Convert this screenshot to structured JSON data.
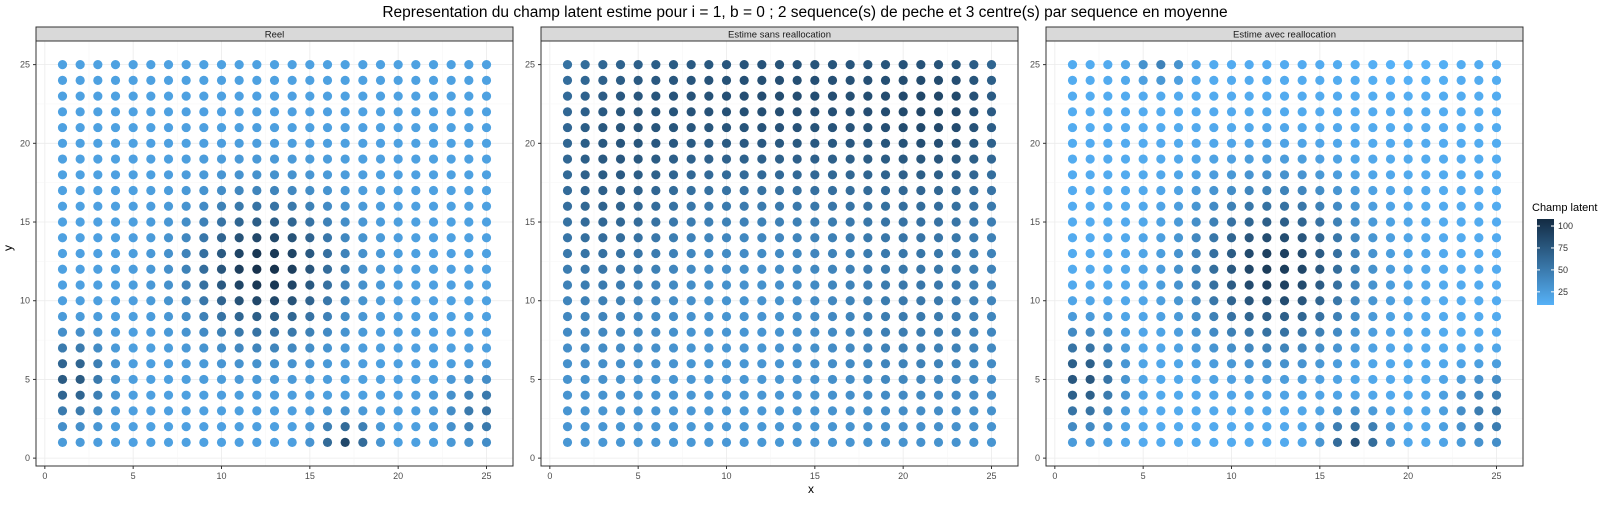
{
  "chart_data": {
    "type": "scatter",
    "title": "Representation du champ latent estime pour i = 1, b = 0 ; 2 sequence(s) de peche et 3 centre(s) par sequence en moyenne",
    "xlabel": "x",
    "ylabel": "y",
    "xlim": [
      -0.5,
      26.5
    ],
    "ylim": [
      -0.5,
      26.5
    ],
    "x_ticks": [
      0,
      5,
      10,
      15,
      20,
      25
    ],
    "y_ticks": [
      0,
      5,
      10,
      15,
      20,
      25
    ],
    "grid": true,
    "grid_x_range": [
      1,
      25
    ],
    "grid_y_range": [
      1,
      25
    ],
    "legend": {
      "title": "Champ latent",
      "position": "right",
      "ticks": [
        25,
        50,
        75,
        100
      ],
      "range": [
        10,
        108
      ],
      "color_low": "#56B1F7",
      "color_high": "#132B43"
    },
    "panels": [
      {
        "label": "Reel",
        "field_model": {
          "base": 22,
          "bumps": [
            {
              "x": 12.5,
              "y": 12,
              "sx": 2.8,
              "sy": 3.0,
              "amp": 82
            },
            {
              "x": 1.5,
              "y": 5,
              "sx": 1.3,
              "sy": 1.8,
              "amp": 55
            },
            {
              "x": 17,
              "y": 1,
              "sx": 1.0,
              "sy": 1.0,
              "amp": 65
            },
            {
              "x": 25,
              "y": 3,
              "sx": 1.5,
              "sy": 1.5,
              "amp": 35
            }
          ]
        }
      },
      {
        "label": "Estime sans reallocation",
        "field_model": {
          "base": 28,
          "bumps": [
            {
              "x": 13,
              "y": 23,
              "sx": 9.0,
              "sy": 5.0,
              "amp": 55
            },
            {
              "x": 23,
              "y": 22,
              "sx": 3.0,
              "sy": 4.0,
              "amp": 28
            },
            {
              "x": 3,
              "y": 16,
              "sx": 3.0,
              "sy": 6.0,
              "amp": 28
            },
            {
              "x": 21,
              "y": 10,
              "sx": 4.0,
              "sy": 5.0,
              "amp": 22
            }
          ]
        }
      },
      {
        "label": "Estime avec reallocation",
        "field_model": {
          "base": 14,
          "bumps": [
            {
              "x": 12.5,
              "y": 12,
              "sx": 3.2,
              "sy": 3.5,
              "amp": 82
            },
            {
              "x": 1.5,
              "y": 5,
              "sx": 1.5,
              "sy": 2.2,
              "amp": 65
            },
            {
              "x": 17,
              "y": 1,
              "sx": 1.2,
              "sy": 1.2,
              "amp": 65
            },
            {
              "x": 25,
              "y": 3,
              "sx": 1.8,
              "sy": 1.8,
              "amp": 40
            },
            {
              "x": 6,
              "y": 25,
              "sx": 1.0,
              "sy": 0.8,
              "amp": 30
            },
            {
              "x": 20,
              "y": 25,
              "sx": 1.5,
              "sy": 1.0,
              "amp": -6
            }
          ]
        }
      }
    ]
  }
}
